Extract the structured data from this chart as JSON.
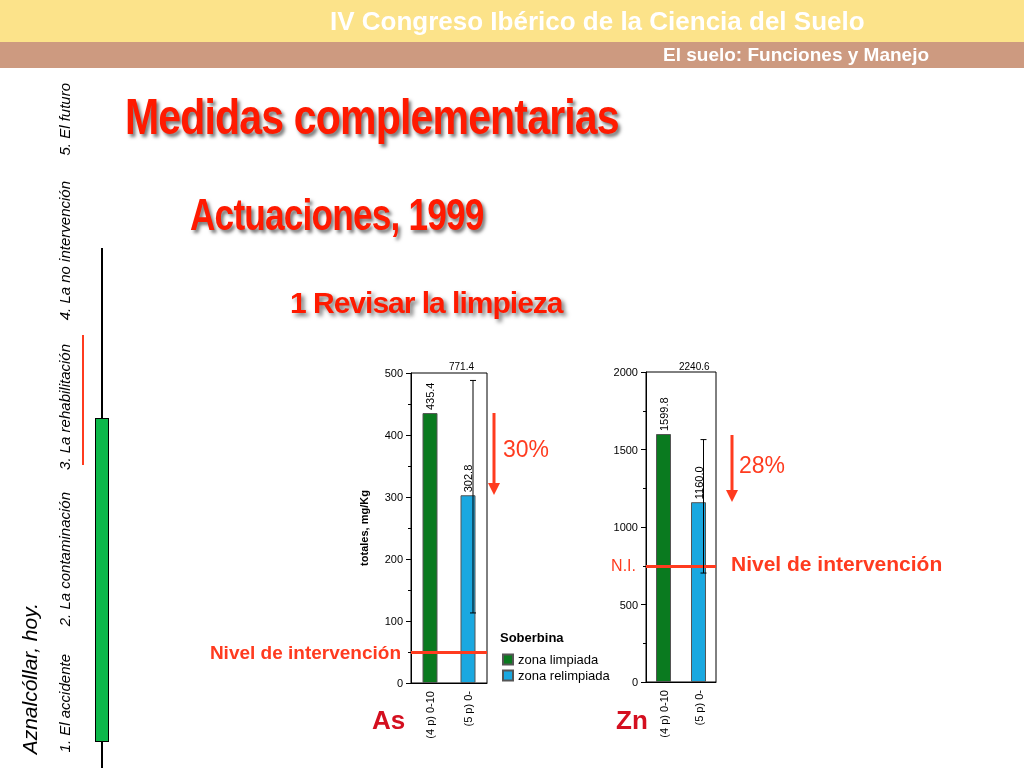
{
  "chart_data": [
    {
      "type": "bar",
      "title": "Medidas complementarias",
      "subtitle": "Actuaciones, 1999",
      "ylabel": "totales, mg/Kg",
      "legend_title": "Soberbina",
      "categories": [
        "(4 p) 0-10",
        "(5 p) 0-"
      ],
      "series": [
        {
          "name": "zona limpiada",
          "color": "#0a7a1f",
          "values": [
            435.4,
            null
          ],
          "value_labels": [
            "435.4",
            null
          ],
          "errors": [
            null,
            null
          ]
        },
        {
          "name": "zona relimpiada",
          "color": "#1aa8e0",
          "values": [
            null,
            302.8
          ],
          "value_labels": [
            null,
            "302.8"
          ],
          "errors": [
            null,
            [
              113,
              488
            ]
          ]
        }
      ],
      "ylim": [
        0,
        500
      ],
      "yticks": [
        0,
        100,
        200,
        300,
        400,
        500
      ],
      "grid": false,
      "legend": "bottom right",
      "ref_lines": [
        {
          "axis": "y",
          "value": 50,
          "label": "Nivel de intervención",
          "color": "#ff3b1f"
        }
      ],
      "annotations": [
        "IV Congreso Ibérico de la Ciencia del Suelo",
        "El suelo: Funciones y Manejo",
        "1  Revisar la limpieza",
        "Aznalcóllar, hoy.",
        "1. El accidente",
        "2. La contaminación",
        "3. La rehabilitación",
        "4. La no intervención",
        "5. El futuro",
        "30%",
        "As",
        "771.4"
      ]
    },
    {
      "type": "bar",
      "categories": [
        "(4 p) 0-10",
        "(5 p) 0-"
      ],
      "series": [
        {
          "color": "#0a7a1f",
          "values": [
            1599.8,
            null
          ],
          "value_labels": [
            "1599.8",
            null
          ],
          "errors": [
            null,
            null
          ]
        },
        {
          "color": "#1aa8e0",
          "values": [
            null,
            1160.0
          ],
          "value_labels": [
            null,
            "1160.0"
          ],
          "errors": [
            null,
            [
              703,
              1564
            ]
          ]
        }
      ],
      "ylim": [
        0,
        2000
      ],
      "yticks": [
        0,
        500,
        1000,
        1500,
        2000
      ],
      "grid": false,
      "legend": false,
      "ref_lines": [
        {
          "axis": "y",
          "value": 750,
          "label": "N.I.",
          "color": "#ff3b1f"
        }
      ],
      "annotations": [
        "28%",
        "Zn",
        "2240.6",
        "Nivel de intervención"
      ]
    }
  ]
}
